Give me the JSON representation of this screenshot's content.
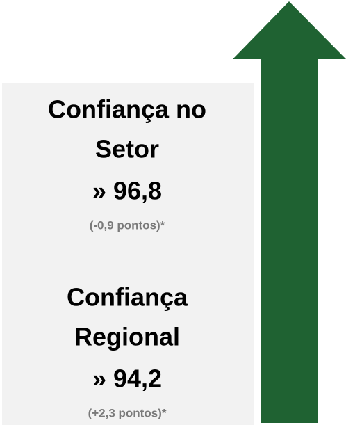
{
  "items": [
    {
      "title_lines": [
        "Confiança no",
        "Setor"
      ],
      "value": "» 96,8",
      "change": "(-0,9 pontos)*"
    },
    {
      "title_lines": [
        "Confiança",
        "Regional"
      ],
      "value": "» 94,2",
      "change": "(+2,3 pontos)*"
    }
  ]
}
